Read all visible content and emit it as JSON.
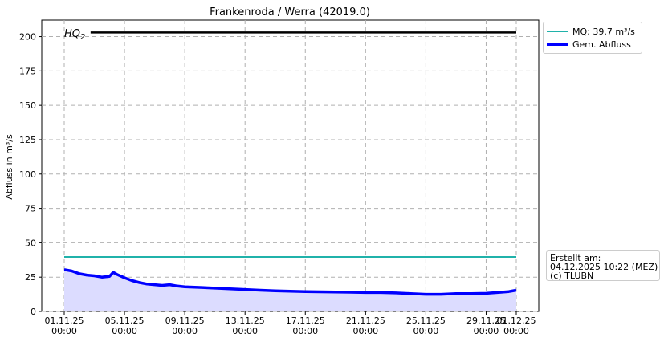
{
  "chart_data": {
    "type": "line",
    "title": "Frankenroda / Werra (42019.0)",
    "xlabel": "",
    "ylabel": "Abfluss in m³/s",
    "ylim": [
      0,
      212
    ],
    "yticks": [
      0,
      25,
      50,
      75,
      100,
      125,
      150,
      175,
      200
    ],
    "xlim": [
      "2025-11-01 00:00",
      "2025-12-01 00:00"
    ],
    "xticks": [
      {
        "date": "2025-11-01",
        "label1": "01.11.25",
        "label2": "00:00"
      },
      {
        "date": "2025-11-05",
        "label1": "05.11.25",
        "label2": "00:00"
      },
      {
        "date": "2025-11-09",
        "label1": "09.11.25",
        "label2": "00:00"
      },
      {
        "date": "2025-11-13",
        "label1": "13.11.25",
        "label2": "00:00"
      },
      {
        "date": "2025-11-17",
        "label1": "17.11.25",
        "label2": "00:00"
      },
      {
        "date": "2025-11-21",
        "label1": "21.11.25",
        "label2": "00:00"
      },
      {
        "date": "2025-11-25",
        "label1": "25.11.25",
        "label2": "00:00"
      },
      {
        "date": "2025-11-29",
        "label1": "29.11.25",
        "label2": "00:00"
      },
      {
        "date": "2025-12-01",
        "label1": "01.12.25",
        "label2": "00:00"
      }
    ],
    "grid": true,
    "legend_position": "outside top-right",
    "series": [
      {
        "name": "MQ: 39.7 m³/s",
        "color": "#20b2aa",
        "constant": 39.7
      },
      {
        "name": "Gem. Abfluss",
        "color": "#0000ff",
        "fill": "#dcdcff",
        "points": [
          [
            "2025-11-01",
            30.5
          ],
          [
            "2025-11-01 12:00",
            29.5
          ],
          [
            "2025-11-02",
            27.5
          ],
          [
            "2025-11-02 12:00",
            26.5
          ],
          [
            "2025-11-03",
            26.0
          ],
          [
            "2025-11-03 12:00",
            25.0
          ],
          [
            "2025-11-04",
            25.5
          ],
          [
            "2025-11-04 06:00",
            28.5
          ],
          [
            "2025-11-04 12:00",
            27.0
          ],
          [
            "2025-11-05",
            24.5
          ],
          [
            "2025-11-05 12:00",
            22.5
          ],
          [
            "2025-11-06",
            21.0
          ],
          [
            "2025-11-06 12:00",
            20.0
          ],
          [
            "2025-11-07",
            19.5
          ],
          [
            "2025-11-07 12:00",
            19.0
          ],
          [
            "2025-11-08",
            19.5
          ],
          [
            "2025-11-08 12:00",
            18.5
          ],
          [
            "2025-11-09",
            18.0
          ],
          [
            "2025-11-10",
            17.5
          ],
          [
            "2025-11-11",
            17.0
          ],
          [
            "2025-11-12",
            16.5
          ],
          [
            "2025-11-13",
            16.0
          ],
          [
            "2025-11-14",
            15.5
          ],
          [
            "2025-11-15",
            15.0
          ],
          [
            "2025-11-16",
            14.8
          ],
          [
            "2025-11-17",
            14.5
          ],
          [
            "2025-11-18",
            14.3
          ],
          [
            "2025-11-19",
            14.2
          ],
          [
            "2025-11-20",
            14.0
          ],
          [
            "2025-11-21",
            13.8
          ],
          [
            "2025-11-22",
            13.8
          ],
          [
            "2025-11-23",
            13.5
          ],
          [
            "2025-11-24",
            13.0
          ],
          [
            "2025-11-25",
            12.5
          ],
          [
            "2025-11-26",
            12.5
          ],
          [
            "2025-11-27",
            13.0
          ],
          [
            "2025-11-28",
            13.0
          ],
          [
            "2025-11-29",
            13.2
          ],
          [
            "2025-11-30",
            14.0
          ],
          [
            "2025-11-30 12:00",
            14.5
          ],
          [
            "2025-12-01",
            15.5
          ]
        ]
      },
      {
        "label": "HQ₂",
        "color": "#000000",
        "constant": 203,
        "start": "2025-11-02 18:00"
      }
    ],
    "hq_label": "HQ",
    "hq_sub": "2"
  },
  "legend": {
    "mq_label": "MQ: 39.7 m³/s",
    "flow_label": "Gem. Abfluss"
  },
  "info": {
    "line1": "Erstellt am:",
    "line2": "04.12.2025 10:22 (MEZ)",
    "line3": "(c) TLUBN"
  },
  "colors": {
    "mq": "#20b2aa",
    "flow": "#0000ff",
    "fill": "#dcdcff",
    "hq": "#000000",
    "grid": "#b0b0b0"
  }
}
